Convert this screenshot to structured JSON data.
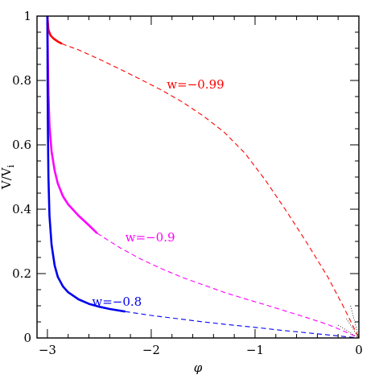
{
  "chart_data": {
    "type": "line",
    "title": "",
    "xlabel": "φ",
    "ylabel": "V/V",
    "ylabel_subscript": "i",
    "xlim": [
      -3.1,
      0.0
    ],
    "ylim": [
      0,
      1.0
    ],
    "x_ticks": [
      -3,
      -2,
      -1,
      0
    ],
    "x_tick_labels": [
      "−3",
      "−2",
      "−1",
      "0"
    ],
    "y_ticks": [
      0,
      0.2,
      0.4,
      0.6,
      0.8,
      1
    ],
    "y_tick_labels": [
      "0",
      "0.2",
      "0.4",
      "0.6",
      "0.8",
      "1"
    ],
    "x_minor_step": 0.2,
    "y_minor_step": 0.05,
    "grid": false,
    "series": [
      {
        "name": "w=−0.99",
        "color": "#ff0000",
        "label_anchor": [
          -1.85,
          0.775
        ],
        "solid": [
          [
            -3.0,
            1.0
          ],
          [
            -2.99,
            0.958
          ],
          [
            -2.97,
            0.94
          ],
          [
            -2.94,
            0.93
          ],
          [
            -2.9,
            0.921
          ],
          [
            -2.86,
            0.914
          ]
        ],
        "dashed": [
          [
            -2.86,
            0.914
          ],
          [
            -2.7,
            0.895
          ],
          [
            -2.5,
            0.866
          ],
          [
            -2.3,
            0.835
          ],
          [
            -2.1,
            0.803
          ],
          [
            -1.9,
            0.77
          ],
          [
            -1.7,
            0.733
          ],
          [
            -1.5,
            0.69
          ],
          [
            -1.3,
            0.64
          ],
          [
            -1.1,
            0.575
          ],
          [
            -0.9,
            0.49
          ],
          [
            -0.7,
            0.395
          ],
          [
            -0.5,
            0.295
          ],
          [
            -0.3,
            0.19
          ],
          [
            -0.15,
            0.098
          ],
          [
            0.0,
            0.0
          ]
        ]
      },
      {
        "name": "w=−0.9",
        "color": "#ff00ff",
        "label_anchor": [
          -2.25,
          0.3
        ],
        "solid": [
          [
            -3.0,
            1.0
          ],
          [
            -2.995,
            0.86
          ],
          [
            -2.99,
            0.76
          ],
          [
            -2.98,
            0.66
          ],
          [
            -2.96,
            0.58
          ],
          [
            -2.93,
            0.52
          ],
          [
            -2.9,
            0.48
          ],
          [
            -2.85,
            0.44
          ],
          [
            -2.8,
            0.415
          ],
          [
            -2.7,
            0.38
          ],
          [
            -2.6,
            0.35
          ],
          [
            -2.52,
            0.325
          ]
        ],
        "dashed": [
          [
            -2.52,
            0.325
          ],
          [
            -2.3,
            0.28
          ],
          [
            -2.1,
            0.245
          ],
          [
            -1.9,
            0.215
          ],
          [
            -1.7,
            0.188
          ],
          [
            -1.5,
            0.165
          ],
          [
            -1.3,
            0.142
          ],
          [
            -1.1,
            0.122
          ],
          [
            -0.9,
            0.103
          ],
          [
            -0.7,
            0.083
          ],
          [
            -0.5,
            0.063
          ],
          [
            -0.3,
            0.042
          ],
          [
            -0.15,
            0.022
          ],
          [
            0.0,
            0.0
          ]
        ]
      },
      {
        "name": "w=−0.8",
        "color": "#0000ee",
        "label_anchor": [
          -2.57,
          0.1
        ],
        "solid": [
          [
            -3.0,
            1.0
          ],
          [
            -2.998,
            0.8
          ],
          [
            -2.995,
            0.64
          ],
          [
            -2.99,
            0.5
          ],
          [
            -2.98,
            0.38
          ],
          [
            -2.96,
            0.29
          ],
          [
            -2.93,
            0.225
          ],
          [
            -2.9,
            0.19
          ],
          [
            -2.85,
            0.16
          ],
          [
            -2.8,
            0.142
          ],
          [
            -2.7,
            0.12
          ],
          [
            -2.6,
            0.106
          ],
          [
            -2.5,
            0.097
          ],
          [
            -2.4,
            0.09
          ],
          [
            -2.25,
            0.082
          ]
        ],
        "dashed": [
          [
            -2.25,
            0.082
          ],
          [
            -2.0,
            0.07
          ],
          [
            -1.75,
            0.06
          ],
          [
            -1.5,
            0.05
          ],
          [
            -1.25,
            0.041
          ],
          [
            -1.0,
            0.033
          ],
          [
            -0.75,
            0.024
          ],
          [
            -0.5,
            0.016
          ],
          [
            -0.25,
            0.008
          ],
          [
            0.0,
            0.0
          ]
        ]
      }
    ]
  }
}
